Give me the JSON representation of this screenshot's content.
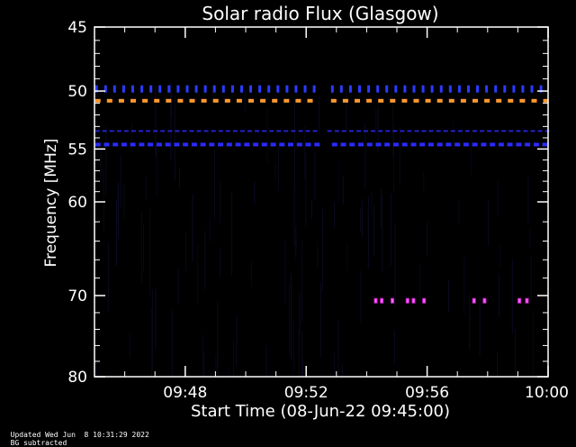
{
  "footer": {
    "updated": "Updated Wed Jun  8 10:31:29 2022",
    "note": "BG subtracted"
  },
  "chart_data": {
    "type": "heatmap",
    "title": "Solar radio Flux (Glasgow)",
    "xlabel": "Start Time (08-Jun-22 09:45:00)",
    "ylabel": "Frequency [MHz]",
    "xlim_minutes_after_0945": [
      0,
      15
    ],
    "ylim_mhz": [
      45,
      80
    ],
    "y_scale": "log",
    "x_ticks": [
      {
        "label": "09:48",
        "minutes": 3
      },
      {
        "label": "09:52",
        "minutes": 7
      },
      {
        "label": "09:56",
        "minutes": 11
      },
      {
        "label": "10:00",
        "minutes": 15
      }
    ],
    "y_ticks": [
      {
        "label": "45",
        "mhz": 45
      },
      {
        "label": "50",
        "mhz": 50
      },
      {
        "label": "55",
        "mhz": 55
      },
      {
        "label": "60",
        "mhz": 60
      },
      {
        "label": "70",
        "mhz": 70
      },
      {
        "label": "80",
        "mhz": 80
      }
    ],
    "y_minor_ticks_mhz": [
      46,
      47,
      48,
      49,
      51,
      52,
      53,
      54,
      56,
      57,
      58,
      59,
      62,
      64,
      66,
      68,
      72,
      74,
      76,
      78
    ],
    "x_minor_ticks_minutes": [
      1,
      2,
      4,
      5,
      6,
      8,
      9,
      10,
      12,
      13,
      14
    ],
    "data_gap_minutes": [
      7.3,
      7.7
    ],
    "bands": [
      {
        "name": "band-50-0",
        "mhz": 49.9,
        "style": "tick",
        "color": "#2a3cff",
        "dash_minutes": 0.09,
        "period_minutes": 0.3
      },
      {
        "name": "band-50-8",
        "mhz": 50.8,
        "style": "dash",
        "color": "#ff9a30",
        "dash_minutes": 0.18,
        "period_minutes": 0.39
      },
      {
        "name": "band-53-4",
        "mhz": 53.4,
        "style": "thin",
        "color": "#2222cc",
        "dash_minutes": 0.15,
        "period_minutes": 0.24
      },
      {
        "name": "band-54-6",
        "mhz": 54.6,
        "style": "dash",
        "color": "#2a2aff",
        "dash_minutes": 0.18,
        "period_minutes": 0.29
      }
    ],
    "bursts": [
      {
        "minute": 9.3,
        "mhz": 70.6,
        "color": "#cc22cc"
      },
      {
        "minute": 9.5,
        "mhz": 70.6,
        "color": "#cc22cc"
      },
      {
        "minute": 9.85,
        "mhz": 70.6,
        "color": "#cc22cc"
      },
      {
        "minute": 10.35,
        "mhz": 70.6,
        "color": "#cc22cc"
      },
      {
        "minute": 10.55,
        "mhz": 70.6,
        "color": "#cc22cc"
      },
      {
        "minute": 10.9,
        "mhz": 70.6,
        "color": "#cc22cc"
      },
      {
        "minute": 12.55,
        "mhz": 70.6,
        "color": "#cc22cc"
      },
      {
        "minute": 12.9,
        "mhz": 70.6,
        "color": "#cc22cc"
      },
      {
        "minute": 14.05,
        "mhz": 70.6,
        "color": "#cc22cc"
      },
      {
        "minute": 14.3,
        "mhz": 70.6,
        "color": "#cc22cc"
      }
    ],
    "background_color": "#000000",
    "axis_color": "#ffffff"
  }
}
